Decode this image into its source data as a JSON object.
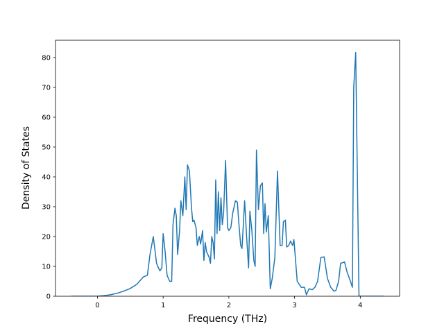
{
  "chart_data": {
    "type": "line",
    "x_label": "Frequency (THz)",
    "y_label": "Density of States",
    "xlim": [
      -0.638,
      4.598
    ],
    "ylim": [
      0,
      85.8
    ],
    "xticks": [
      0,
      1,
      2,
      3,
      4
    ],
    "yticks": [
      0,
      10,
      20,
      30,
      40,
      50,
      60,
      70,
      80
    ],
    "grid": false,
    "series": [
      {
        "color": "#1f77b4",
        "x": [
          -0.4,
          0,
          0.1,
          0.2,
          0.3,
          0.4,
          0.5,
          0.6,
          0.7,
          0.76,
          0.8,
          0.85,
          0.9,
          0.95,
          0.98,
          1.0,
          1.03,
          1.06,
          1.1,
          1.13,
          1.15,
          1.18,
          1.2,
          1.22,
          1.25,
          1.27,
          1.3,
          1.33,
          1.35,
          1.37,
          1.4,
          1.43,
          1.45,
          1.47,
          1.5,
          1.52,
          1.55,
          1.57,
          1.6,
          1.62,
          1.64,
          1.66,
          1.7,
          1.72,
          1.74,
          1.76,
          1.78,
          1.8,
          1.82,
          1.84,
          1.86,
          1.88,
          1.9,
          1.92,
          1.95,
          1.98,
          2.0,
          2.03,
          2.06,
          2.1,
          2.13,
          2.15,
          2.18,
          2.2,
          2.24,
          2.27,
          2.3,
          2.32,
          2.35,
          2.38,
          2.4,
          2.42,
          2.45,
          2.48,
          2.51,
          2.53,
          2.55,
          2.57,
          2.6,
          2.63,
          2.66,
          2.7,
          2.74,
          2.78,
          2.81,
          2.83,
          2.86,
          2.88,
          2.91,
          2.94,
          2.97,
          2.99,
          3.04,
          3.1,
          3.15,
          3.18,
          3.22,
          3.27,
          3.31,
          3.35,
          3.4,
          3.45,
          3.5,
          3.55,
          3.6,
          3.63,
          3.67,
          3.7,
          3.76,
          3.8,
          3.85,
          3.88,
          3.9,
          3.93,
          3.98,
          4.36
        ],
        "values": [
          0,
          0,
          0.2,
          0.5,
          1,
          1.7,
          2.6,
          4,
          6.5,
          7,
          14,
          20,
          11,
          8.5,
          9.5,
          21,
          15,
          7,
          5,
          5,
          24,
          29.5,
          27,
          14,
          22,
          32,
          27,
          40,
          29,
          44,
          42,
          30,
          25,
          25.5,
          23,
          17,
          20,
          17.5,
          22,
          12,
          18,
          15,
          13,
          11,
          20,
          18,
          12.5,
          39,
          21,
          35,
          22,
          33,
          24,
          28,
          45.5,
          23,
          22,
          23,
          28,
          32,
          31.5,
          25,
          17,
          16,
          32,
          20,
          9.5,
          28.5,
          22,
          12,
          10,
          49,
          29,
          37,
          38,
          21,
          31,
          21.5,
          27,
          2.5,
          6,
          13,
          42,
          17,
          17,
          25,
          25.5,
          16.5,
          17,
          18.5,
          17,
          19,
          5,
          3,
          3,
          0.5,
          2.5,
          2.2,
          3,
          5,
          13,
          13.2,
          6,
          3,
          1.7,
          2,
          5,
          11,
          11.5,
          8,
          5,
          3,
          70,
          81.7,
          0,
          0
        ]
      }
    ]
  }
}
